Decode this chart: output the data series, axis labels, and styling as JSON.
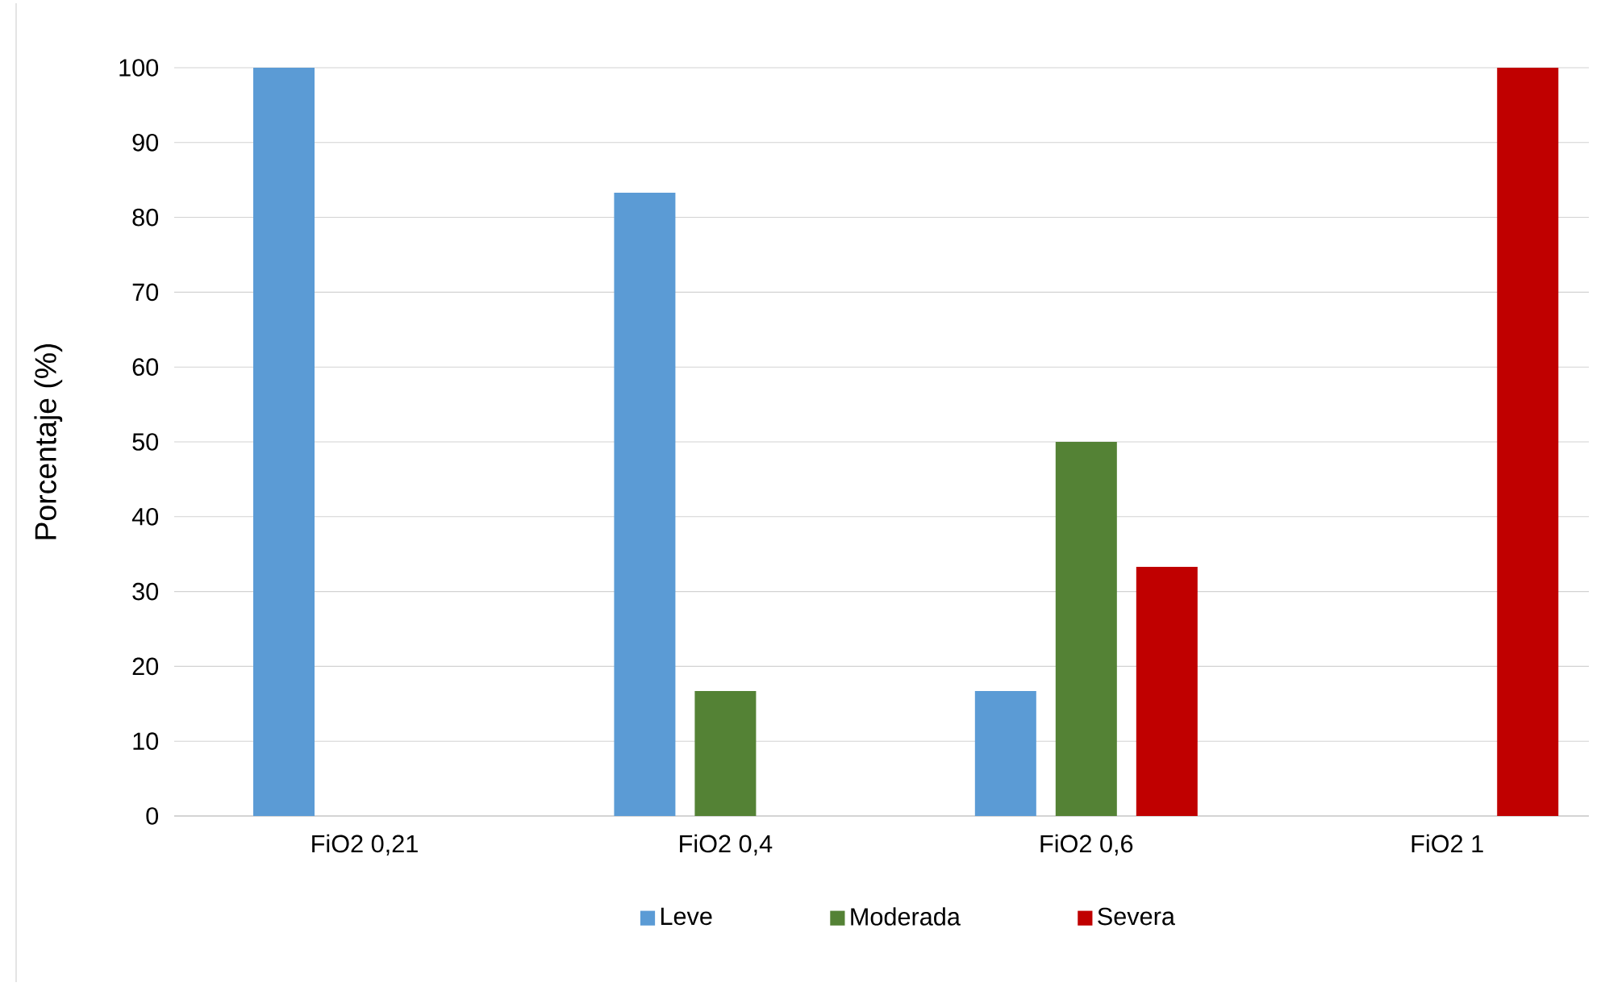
{
  "chart_data": {
    "type": "bar",
    "ylabel": "Porcentaje (%)",
    "categories": [
      "FiO2 0,21",
      "FiO2 0,4",
      "FiO2 0,6",
      "FiO2 1"
    ],
    "series": [
      {
        "name": "Leve",
        "color": "#5b9bd5",
        "values": [
          100,
          83.3,
          16.7,
          0
        ]
      },
      {
        "name": "Moderada",
        "color": "#548235",
        "values": [
          0,
          16.7,
          50,
          0
        ]
      },
      {
        "name": "Severa",
        "color": "#c00000",
        "values": [
          0,
          0,
          33.3,
          100
        ]
      }
    ],
    "ylim": [
      0,
      100
    ],
    "yticks": [
      0,
      10,
      20,
      30,
      40,
      50,
      60,
      70,
      80,
      90,
      100
    ],
    "grid": "y",
    "legend": "bottom"
  }
}
